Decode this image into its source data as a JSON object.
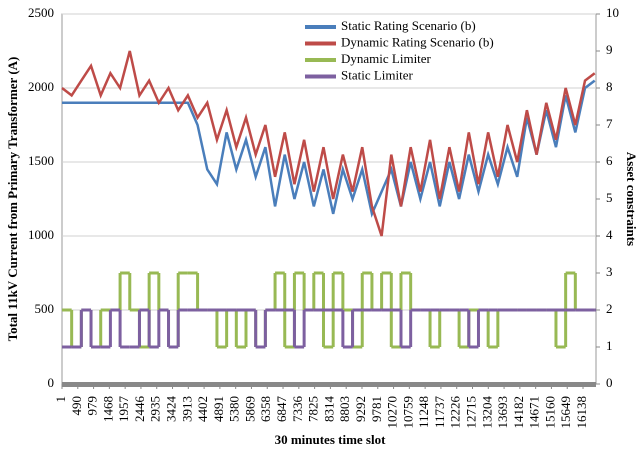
{
  "chart_data": {
    "type": "line",
    "x_label": "30 minutes time slot",
    "y_label": "Total 11kV Current from Primary Transformer (A)",
    "y2_label": "Asset constraints",
    "grid": true,
    "legend_position": "top",
    "xlim": [
      1,
      16540
    ],
    "xticks": [
      1,
      490,
      979,
      1468,
      1957,
      2446,
      2935,
      3424,
      3913,
      4402,
      4891,
      5380,
      5869,
      6358,
      6847,
      7336,
      7825,
      8314,
      8803,
      9292,
      9781,
      10270,
      10759,
      11248,
      11737,
      12226,
      12715,
      13204,
      13693,
      14182,
      14671,
      15160,
      15649,
      16138
    ],
    "ylim": [
      0,
      2500
    ],
    "yticks": [
      0,
      500,
      1000,
      1500,
      2000,
      2500
    ],
    "y2lim": [
      0,
      10
    ],
    "y2ticks": [
      0,
      1,
      2,
      3,
      4,
      5,
      6,
      7,
      8,
      9,
      10
    ],
    "x": [
      1,
      300,
      600,
      900,
      1200,
      1500,
      1800,
      2100,
      2400,
      2700,
      3000,
      3300,
      3600,
      3900,
      4200,
      4500,
      4800,
      5100,
      5400,
      5700,
      6000,
      6300,
      6600,
      6900,
      7200,
      7500,
      7800,
      8100,
      8400,
      8700,
      9000,
      9300,
      9600,
      9900,
      10200,
      10500,
      10800,
      11100,
      11400,
      11700,
      12000,
      12300,
      12600,
      12900,
      13200,
      13500,
      13800,
      14100,
      14400,
      14700,
      15000,
      15300,
      15600,
      15900,
      16200,
      16500
    ],
    "series": [
      {
        "name": "Static Rating Scenario (b)",
        "color": "#4a7ebb",
        "values": [
          1900,
          1900,
          1900,
          1900,
          1900,
          1900,
          1900,
          1900,
          1900,
          1900,
          1900,
          1900,
          1900,
          1900,
          1750,
          1450,
          1350,
          1700,
          1450,
          1650,
          1400,
          1600,
          1200,
          1550,
          1250,
          1500,
          1200,
          1450,
          1150,
          1450,
          1250,
          1450,
          1150,
          1300,
          1450,
          1200,
          1500,
          1250,
          1500,
          1200,
          1500,
          1250,
          1550,
          1300,
          1550,
          1350,
          1600,
          1400,
          1800,
          1550,
          1850,
          1600,
          1950,
          1700,
          2000,
          2050
        ]
      },
      {
        "name": "Dynamic Rating Scenario (b)",
        "color": "#be4b48",
        "values": [
          2000,
          1950,
          2050,
          2150,
          1950,
          2100,
          2000,
          2250,
          1950,
          2050,
          1900,
          2000,
          1850,
          1950,
          1800,
          1900,
          1650,
          1850,
          1600,
          1800,
          1550,
          1750,
          1400,
          1700,
          1350,
          1650,
          1300,
          1600,
          1250,
          1550,
          1300,
          1600,
          1200,
          1000,
          1550,
          1200,
          1600,
          1300,
          1650,
          1250,
          1600,
          1300,
          1700,
          1350,
          1700,
          1400,
          1750,
          1500,
          1850,
          1550,
          1900,
          1650,
          2000,
          1750,
          2050,
          2100
        ]
      },
      {
        "name": "Dynamic Limiter",
        "color": "#98b954",
        "axis": "y2",
        "drawstyle": "steps",
        "values": [
          2,
          1,
          2,
          1,
          2,
          2,
          3,
          2,
          1,
          3,
          2,
          1,
          3,
          3,
          2,
          2,
          1,
          2,
          1,
          2,
          1,
          2,
          3,
          1,
          3,
          2,
          3,
          1,
          3,
          2,
          1,
          3,
          2,
          3,
          1,
          3,
          2,
          2,
          1,
          2,
          2,
          1,
          2,
          2,
          1,
          2,
          2,
          2,
          2,
          2,
          2,
          1,
          3,
          2,
          2,
          2
        ]
      },
      {
        "name": "Static Limiter",
        "color": "#7d60a0",
        "axis": "y2",
        "drawstyle": "steps",
        "values": [
          1,
          1,
          2,
          1,
          1,
          2,
          1,
          1,
          2,
          1,
          2,
          1,
          2,
          2,
          2,
          2,
          2,
          2,
          2,
          2,
          1,
          2,
          2,
          2,
          1,
          2,
          2,
          2,
          2,
          1,
          2,
          2,
          2,
          2,
          2,
          1,
          2,
          2,
          2,
          2,
          2,
          2,
          1,
          2,
          2,
          2,
          2,
          2,
          2,
          2,
          2,
          2,
          2,
          2,
          2,
          2
        ]
      }
    ]
  }
}
